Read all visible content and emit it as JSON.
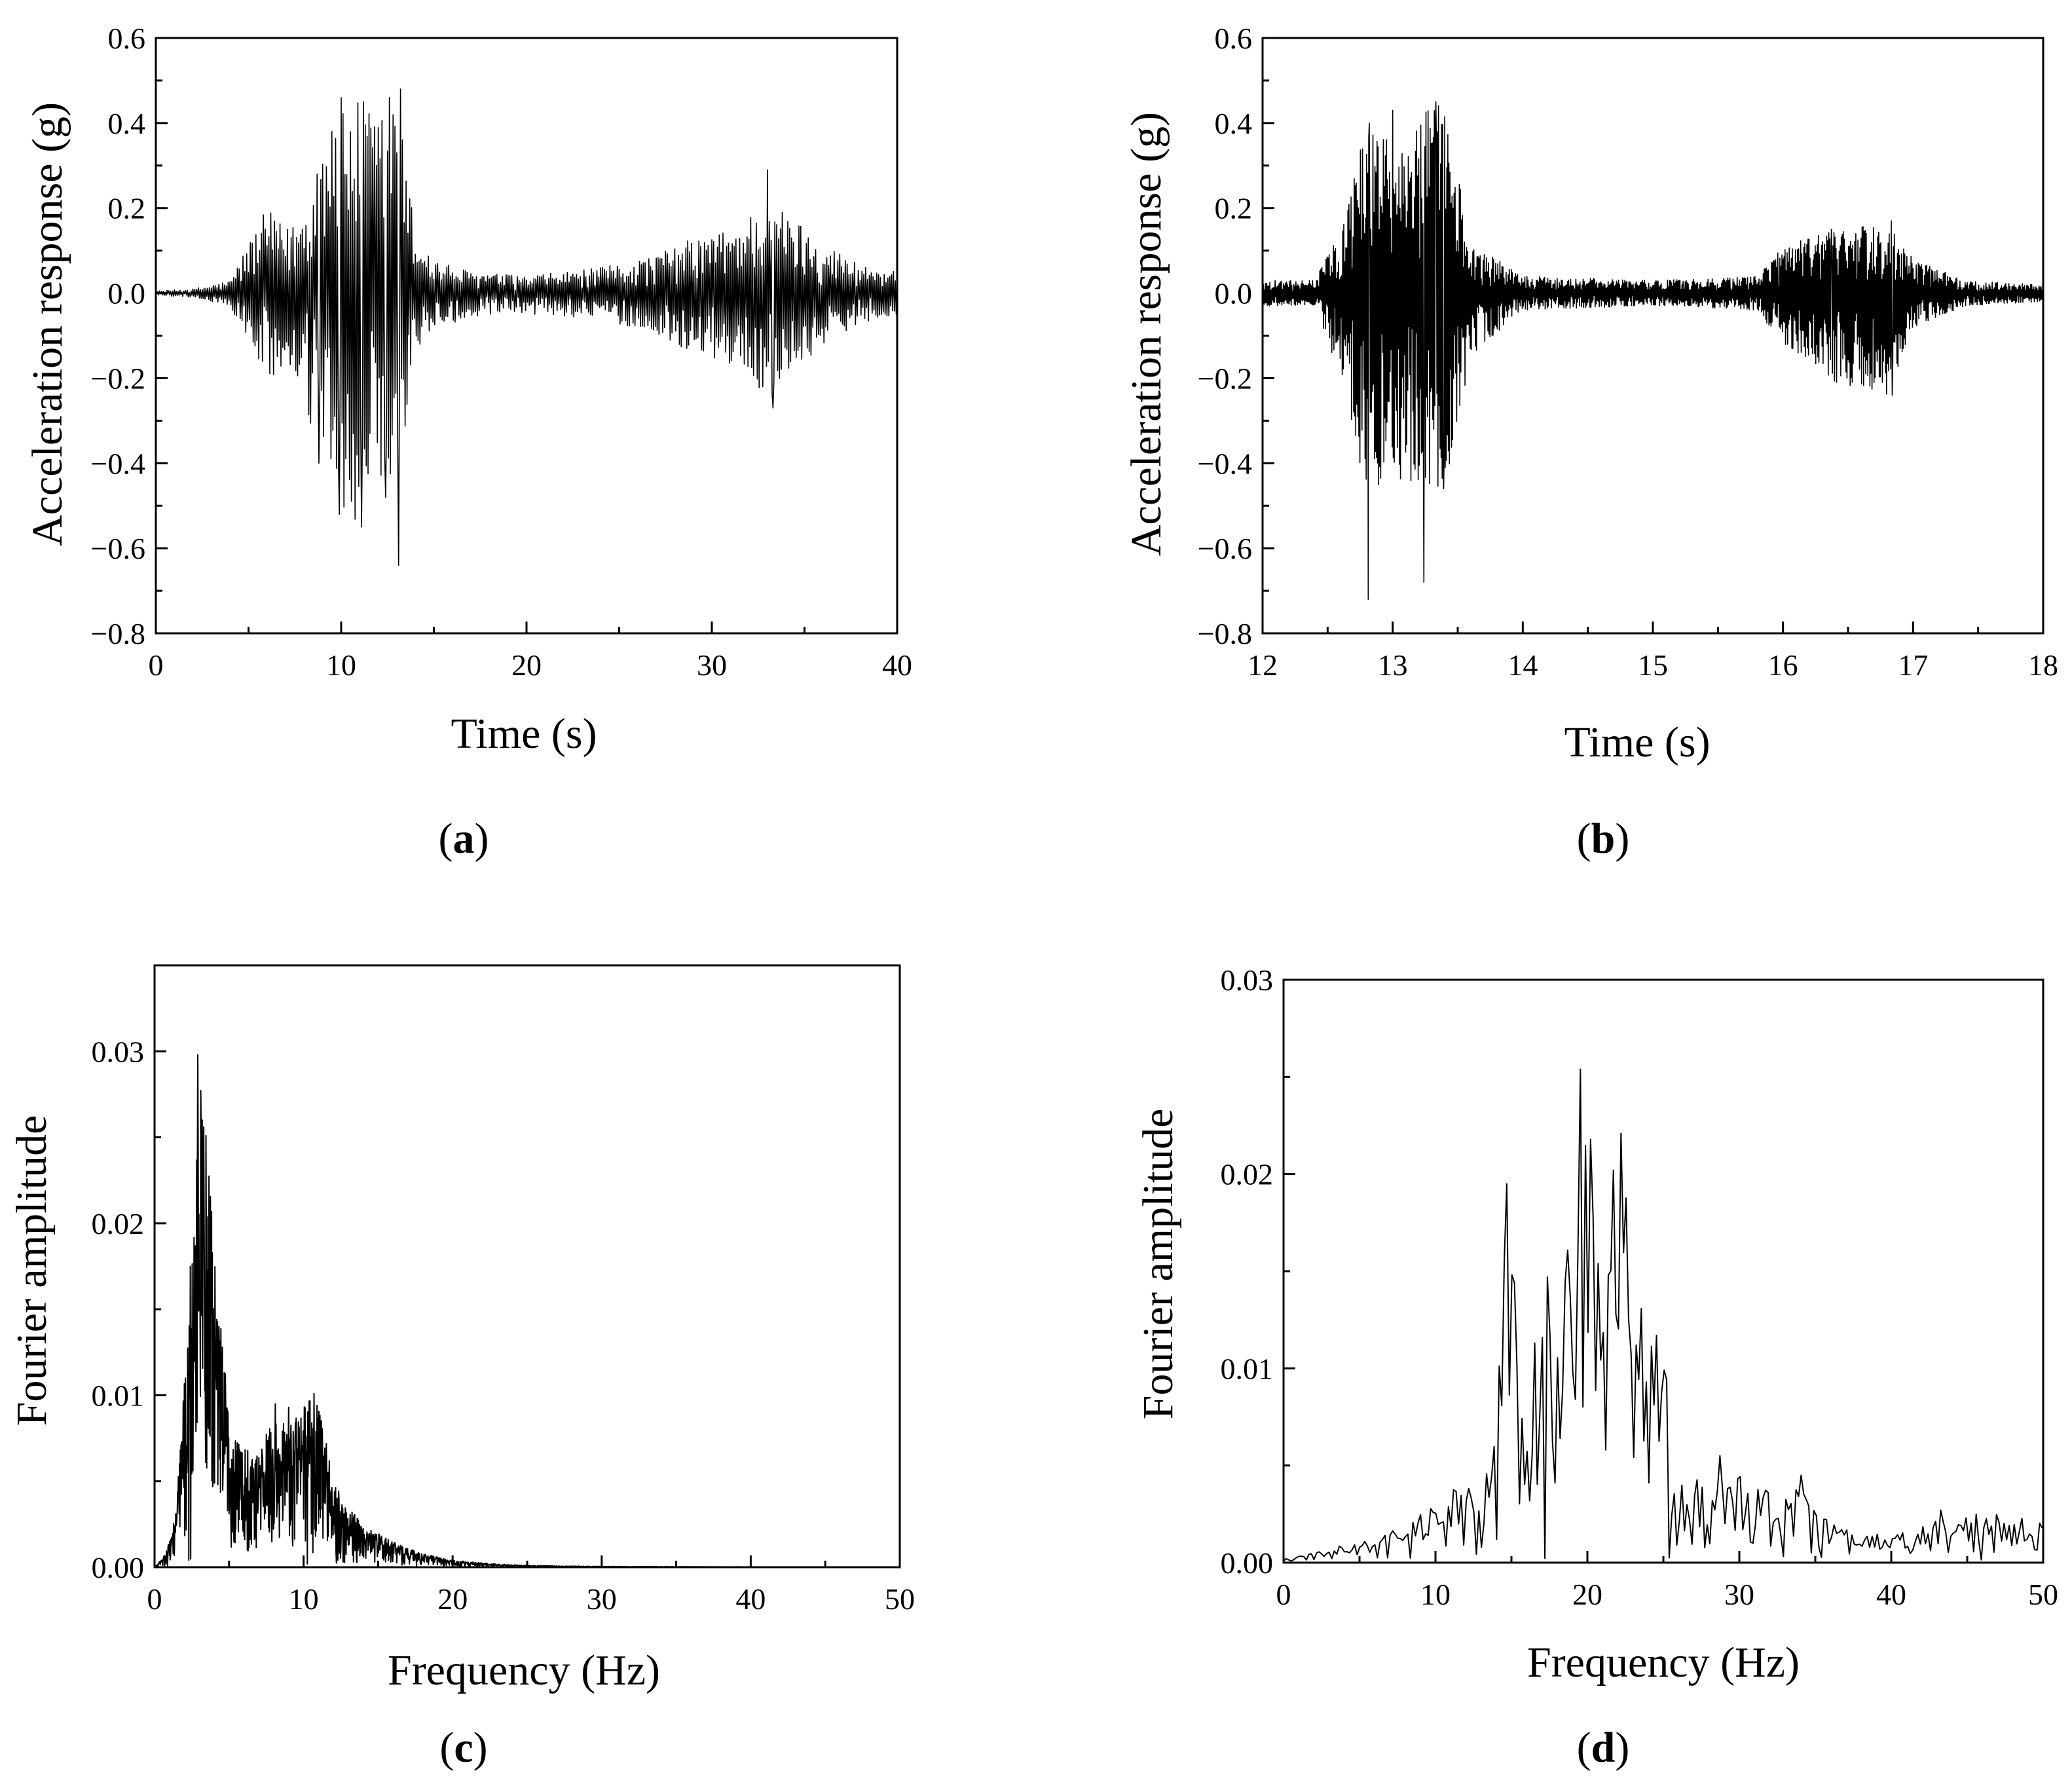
{
  "colors": {
    "line": "#000000",
    "background": "#ffffff"
  },
  "panels": [
    {
      "id": "a",
      "tag_open": "(",
      "tag_letter": "a",
      "tag_close": ")",
      "xlabel": "Time (s)",
      "ylabel": "Acceleration response (g)",
      "x_ticks": [
        "0",
        "10",
        "20",
        "30",
        "40"
      ],
      "y_ticks": [
        "0.6",
        "0.4",
        "0.2",
        "0.0",
        "−0.2",
        "−0.4",
        "−0.6",
        "−0.8"
      ]
    },
    {
      "id": "b",
      "tag_open": "(",
      "tag_letter": "b",
      "tag_close": ")",
      "xlabel": "Time (s)",
      "ylabel": "Acceleration response (g)",
      "x_ticks": [
        "12",
        "13",
        "14",
        "15",
        "16",
        "17",
        "18"
      ],
      "y_ticks": [
        "0.6",
        "0.4",
        "0.2",
        "0.0",
        "−0.2",
        "−0.4",
        "−0.6",
        "−0.8"
      ]
    },
    {
      "id": "c",
      "tag_open": "(",
      "tag_letter": "c",
      "tag_close": ")",
      "xlabel": "Frequency (Hz)",
      "ylabel": "Fourier amplitude",
      "x_ticks": [
        "0",
        "10",
        "20",
        "30",
        "40",
        "50"
      ],
      "y_ticks": [
        "0.03",
        "0.02",
        "0.01",
        "0.00"
      ]
    },
    {
      "id": "d",
      "tag_open": "(",
      "tag_letter": "d",
      "tag_close": ")",
      "xlabel": "Frequency (Hz)",
      "ylabel": "Fourier amplitude",
      "x_ticks": [
        "0",
        "10",
        "20",
        "30",
        "40",
        "50"
      ],
      "y_ticks": [
        "0.03",
        "0.02",
        "0.01",
        "0.00"
      ]
    }
  ],
  "chart_data": [
    {
      "panel": "a",
      "type": "line",
      "title": "",
      "xlabel": "Time (s)",
      "ylabel": "Acceleration response (g)",
      "xlim": [
        0,
        40
      ],
      "ylim": [
        -0.8,
        0.6
      ],
      "x_ticks": [
        0,
        10,
        20,
        30,
        40
      ],
      "y_ticks": [
        0.6,
        0.4,
        0.2,
        0.0,
        -0.2,
        -0.4,
        -0.6,
        -0.8
      ],
      "grid": false,
      "sampling_step": 0.05,
      "envelope": {
        "t": [
          0,
          2,
          4,
          5,
          6,
          7,
          8,
          9,
          10,
          11,
          12,
          13,
          13.5,
          14,
          15,
          17,
          20,
          24,
          27,
          29,
          31,
          33,
          34,
          35,
          36,
          38,
          40
        ],
        "upper": [
          0.005,
          0.01,
          0.03,
          0.12,
          0.2,
          0.15,
          0.2,
          0.38,
          0.46,
          0.45,
          0.42,
          0.48,
          0.3,
          0.15,
          0.08,
          0.05,
          0.04,
          0.06,
          0.09,
          0.13,
          0.15,
          0.22,
          0.19,
          0.16,
          0.12,
          0.07,
          0.05
        ],
        "lower": [
          -0.005,
          -0.01,
          -0.03,
          -0.12,
          -0.2,
          -0.2,
          -0.28,
          -0.4,
          -0.52,
          -0.55,
          -0.48,
          -0.64,
          -0.3,
          -0.15,
          -0.08,
          -0.06,
          -0.05,
          -0.06,
          -0.1,
          -0.14,
          -0.17,
          -0.25,
          -0.2,
          -0.16,
          -0.12,
          -0.07,
          -0.05
        ]
      },
      "peaks": [
        {
          "x": 9.5,
          "y": 0.38
        },
        {
          "x": 10.0,
          "y": 0.46
        },
        {
          "x": 11.2,
          "y": 0.45
        },
        {
          "x": 12.6,
          "y": 0.46
        },
        {
          "x": 13.2,
          "y": 0.48
        },
        {
          "x": 8.8,
          "y": -0.4
        },
        {
          "x": 9.9,
          "y": -0.52
        },
        {
          "x": 11.1,
          "y": -0.55
        },
        {
          "x": 12.4,
          "y": -0.48
        },
        {
          "x": 13.1,
          "y": -0.64
        },
        {
          "x": 33.0,
          "y": 0.29
        },
        {
          "x": 33.3,
          "y": -0.27
        }
      ]
    },
    {
      "panel": "b",
      "type": "line",
      "title": "",
      "xlabel": "Time (s)",
      "ylabel": "Acceleration response (g)",
      "xlim": [
        12,
        18
      ],
      "ylim": [
        -0.8,
        0.6
      ],
      "x_ticks": [
        12,
        13,
        14,
        15,
        16,
        17,
        18
      ],
      "y_ticks": [
        0.6,
        0.4,
        0.2,
        0.0,
        -0.2,
        -0.4,
        -0.6,
        -0.8
      ],
      "grid": false,
      "sampling_step": 0.004,
      "envelope": {
        "t": [
          12,
          12.4,
          12.6,
          12.8,
          13.0,
          13.2,
          13.4,
          13.6,
          14,
          15,
          15.8,
          16.0,
          16.4,
          16.8,
          17.0,
          17.4,
          18
        ],
        "upper": [
          0.03,
          0.03,
          0.15,
          0.4,
          0.4,
          0.43,
          0.45,
          0.12,
          0.04,
          0.03,
          0.04,
          0.11,
          0.15,
          0.17,
          0.08,
          0.03,
          0.02
        ],
        "lower": [
          -0.03,
          -0.03,
          -0.2,
          -0.47,
          -0.45,
          -0.44,
          -0.46,
          -0.15,
          -0.04,
          -0.03,
          -0.04,
          -0.12,
          -0.21,
          -0.24,
          -0.08,
          -0.03,
          -0.02
        ]
      },
      "peaks": [
        {
          "x": 12.81,
          "y": -0.72
        },
        {
          "x": 13.24,
          "y": -0.68
        },
        {
          "x": 12.82,
          "y": 0.4
        },
        {
          "x": 13.0,
          "y": 0.43
        },
        {
          "x": 13.33,
          "y": 0.45
        },
        {
          "x": 13.39,
          "y": -0.46
        },
        {
          "x": 16.41,
          "y": -0.21
        },
        {
          "x": 16.84,
          "y": -0.24
        },
        {
          "x": 16.83,
          "y": 0.17
        },
        {
          "x": 16.37,
          "y": 0.15
        }
      ]
    },
    {
      "panel": "c",
      "type": "line",
      "title": "",
      "xlabel": "Frequency (Hz)",
      "ylabel": "Fourier amplitude",
      "xlim": [
        0,
        50
      ],
      "ylim": [
        0,
        0.035
      ],
      "x_ticks": [
        0,
        10,
        20,
        30,
        40,
        50
      ],
      "y_ticks": [
        0.03,
        0.02,
        0.01,
        0.0
      ],
      "grid": false,
      "sampling_step": 0.025,
      "envelope": {
        "f": [
          0,
          0.5,
          1,
          1.5,
          2,
          2.5,
          3,
          3.5,
          4,
          5,
          6,
          7,
          8,
          9,
          10,
          11,
          12,
          13,
          14,
          16,
          18,
          20,
          22,
          25,
          30,
          50
        ],
        "upper": [
          0.0,
          0.0005,
          0.0015,
          0.004,
          0.011,
          0.017,
          0.03,
          0.026,
          0.018,
          0.009,
          0.007,
          0.007,
          0.0085,
          0.0085,
          0.0095,
          0.01,
          0.005,
          0.0035,
          0.0025,
          0.0015,
          0.0008,
          0.0004,
          0.00025,
          0.0001,
          5e-05,
          0.0
        ]
      },
      "peaks": [
        {
          "x": 2.4,
          "y": 0.0175
        },
        {
          "x": 2.9,
          "y": 0.0298
        },
        {
          "x": 3.3,
          "y": 0.0256
        },
        {
          "x": 3.8,
          "y": 0.0183
        },
        {
          "x": 4.3,
          "y": 0.0095
        },
        {
          "x": 8.1,
          "y": 0.0095
        },
        {
          "x": 9.0,
          "y": 0.0093
        },
        {
          "x": 10.7,
          "y": 0.0101
        }
      ]
    },
    {
      "panel": "d",
      "type": "line",
      "title": "",
      "xlabel": "Frequency (Hz)",
      "ylabel": "Fourier amplitude",
      "xlim": [
        0,
        50
      ],
      "ylim": [
        0,
        0.03
      ],
      "x_ticks": [
        0,
        10,
        20,
        30,
        40,
        50
      ],
      "y_ticks": [
        0.03,
        0.02,
        0.01,
        0.0
      ],
      "grid": false,
      "sampling_step": 0.167,
      "envelope": {
        "f": [
          0,
          2,
          4,
          6,
          8,
          10,
          12,
          13,
          14,
          15,
          16,
          17,
          18,
          19,
          20,
          21,
          22,
          23,
          24,
          25,
          26,
          28,
          30,
          32,
          34,
          36,
          38,
          40,
          42,
          44,
          46,
          48,
          50
        ],
        "upper": [
          0.0002,
          0.0005,
          0.001,
          0.0012,
          0.002,
          0.003,
          0.0045,
          0.004,
          0.012,
          0.0195,
          0.011,
          0.0145,
          0.014,
          0.017,
          0.0253,
          0.013,
          0.022,
          0.018,
          0.0115,
          0.011,
          0.004,
          0.0045,
          0.0045,
          0.004,
          0.004,
          0.002,
          0.0015,
          0.0015,
          0.002,
          0.0025,
          0.0025,
          0.0025,
          0.0025
        ]
      },
      "peaks": [
        {
          "x": 14.7,
          "y": 0.0195
        },
        {
          "x": 16.5,
          "y": 0.0113
        },
        {
          "x": 17.3,
          "y": 0.0147
        },
        {
          "x": 18.6,
          "y": 0.0145
        },
        {
          "x": 19.6,
          "y": 0.0254
        },
        {
          "x": 21.7,
          "y": 0.0202
        },
        {
          "x": 22.2,
          "y": 0.0221
        },
        {
          "x": 23.2,
          "y": 0.0112
        },
        {
          "x": 24.6,
          "y": 0.0117
        },
        {
          "x": 28.8,
          "y": 0.0055
        },
        {
          "x": 34.0,
          "y": 0.0045
        },
        {
          "x": 43.3,
          "y": 0.0027
        }
      ]
    }
  ]
}
